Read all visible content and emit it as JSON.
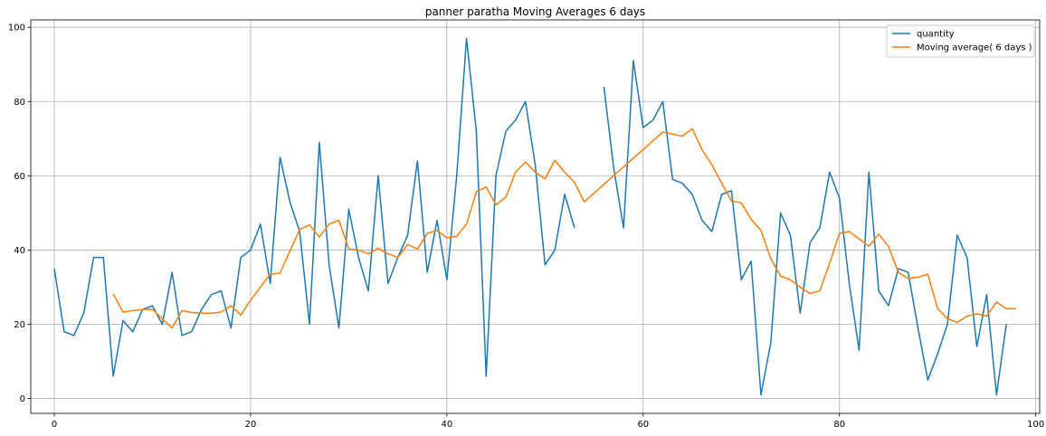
{
  "chart_data": {
    "type": "line",
    "title": "panner paratha Moving Averages 6 days",
    "xlabel": "",
    "ylabel": "",
    "xlim": [
      -2.4,
      100.4
    ],
    "ylim": [
      -4,
      102
    ],
    "xticks": [
      0,
      20,
      40,
      60,
      80,
      100
    ],
    "yticks": [
      0,
      20,
      40,
      60,
      80,
      100
    ],
    "grid": true,
    "legend_position": "top-right",
    "series": [
      {
        "name": "quantity",
        "color": "#1f77b4",
        "x": [
          0,
          1,
          2,
          3,
          4,
          5,
          6,
          7,
          8,
          9,
          10,
          11,
          12,
          13,
          14,
          15,
          16,
          17,
          18,
          19,
          20,
          21,
          22,
          23,
          24,
          25,
          26,
          27,
          28,
          29,
          30,
          31,
          32,
          33,
          34,
          35,
          36,
          37,
          38,
          39,
          40,
          41,
          42,
          43,
          44,
          45,
          46,
          47,
          48,
          49,
          50,
          51,
          52,
          53,
          54,
          55,
          56,
          57,
          58,
          59,
          60,
          61,
          62,
          63,
          64,
          65,
          66,
          67,
          68,
          69,
          70,
          71,
          72,
          73,
          74,
          75,
          76,
          77,
          78,
          79,
          80,
          81,
          82,
          83,
          84,
          85,
          86,
          87,
          88,
          89,
          90,
          91,
          92,
          93,
          94,
          95,
          96,
          97
        ],
        "y": [
          35,
          18,
          17,
          23,
          38,
          38,
          6,
          21,
          18,
          24,
          25,
          20,
          34,
          17,
          18,
          24,
          28,
          29,
          19,
          38,
          40,
          47,
          31,
          65,
          53,
          45,
          20,
          69,
          36,
          19,
          51,
          38,
          29,
          60,
          31,
          38,
          44,
          64,
          34,
          48,
          32,
          60,
          97,
          72,
          6,
          60,
          72,
          75,
          80,
          63,
          36,
          40,
          55,
          46,
          null,
          null,
          84,
          62,
          46,
          91,
          73,
          75,
          80,
          59,
          58,
          55,
          48,
          45,
          55,
          56,
          32,
          37,
          1,
          15,
          50,
          44,
          23,
          42,
          46,
          61,
          54,
          31,
          13,
          61,
          29,
          25,
          35,
          34,
          19,
          5,
          12,
          20,
          44,
          38,
          14,
          28,
          1,
          20
        ]
      },
      {
        "name": "Moving average( 6 days )",
        "color": "#ff7f0e",
        "x": [
          6,
          7,
          8,
          9,
          10,
          11,
          12,
          13,
          14,
          15,
          16,
          17,
          18,
          19,
          20,
          21,
          22,
          23,
          24,
          25,
          26,
          27,
          28,
          29,
          30,
          31,
          32,
          33,
          34,
          35,
          36,
          37,
          38,
          39,
          40,
          41,
          42,
          43,
          44,
          45,
          46,
          47,
          48,
          49,
          50,
          51,
          52,
          53,
          54,
          62,
          63,
          64,
          65,
          66,
          67,
          68,
          69,
          70,
          71,
          72,
          73,
          74,
          75,
          76,
          77,
          78,
          79,
          80,
          81,
          82,
          83,
          84,
          85,
          86,
          87,
          88,
          89,
          90,
          91,
          92,
          93,
          94,
          95,
          96,
          97,
          98
        ],
        "y": [
          28.2,
          23.3,
          23.7,
          24.0,
          24.0,
          21.5,
          19.0,
          23.7,
          23.2,
          23.0,
          23.0,
          23.3,
          25.0,
          22.5,
          26.5,
          30.0,
          33.5,
          33.8,
          39.7,
          45.5,
          46.8,
          43.5,
          47.0,
          48.0,
          40.3,
          40.0,
          39.0,
          40.5,
          39.0,
          38.0,
          41.5,
          40.3,
          44.5,
          45.3,
          43.3,
          43.7,
          47.0,
          55.7,
          57.0,
          52.2,
          54.2,
          61.0,
          63.7,
          61.0,
          59.2,
          64.2,
          61.0,
          58.2,
          53.0,
          71.8,
          71.2,
          70.7,
          72.7,
          67.0,
          63.0,
          58.0,
          53.2,
          52.7,
          48.3,
          45.3,
          37.7,
          33.0,
          32.0,
          30.0,
          28.3,
          29.0,
          36.5,
          44.5,
          45.0,
          43.0,
          41.0,
          44.3,
          41.0,
          34.0,
          32.3,
          32.7,
          33.5,
          24.3,
          21.5,
          20.5,
          22.2,
          22.8,
          22.2,
          26.0,
          24.2,
          24.2
        ]
      }
    ]
  }
}
